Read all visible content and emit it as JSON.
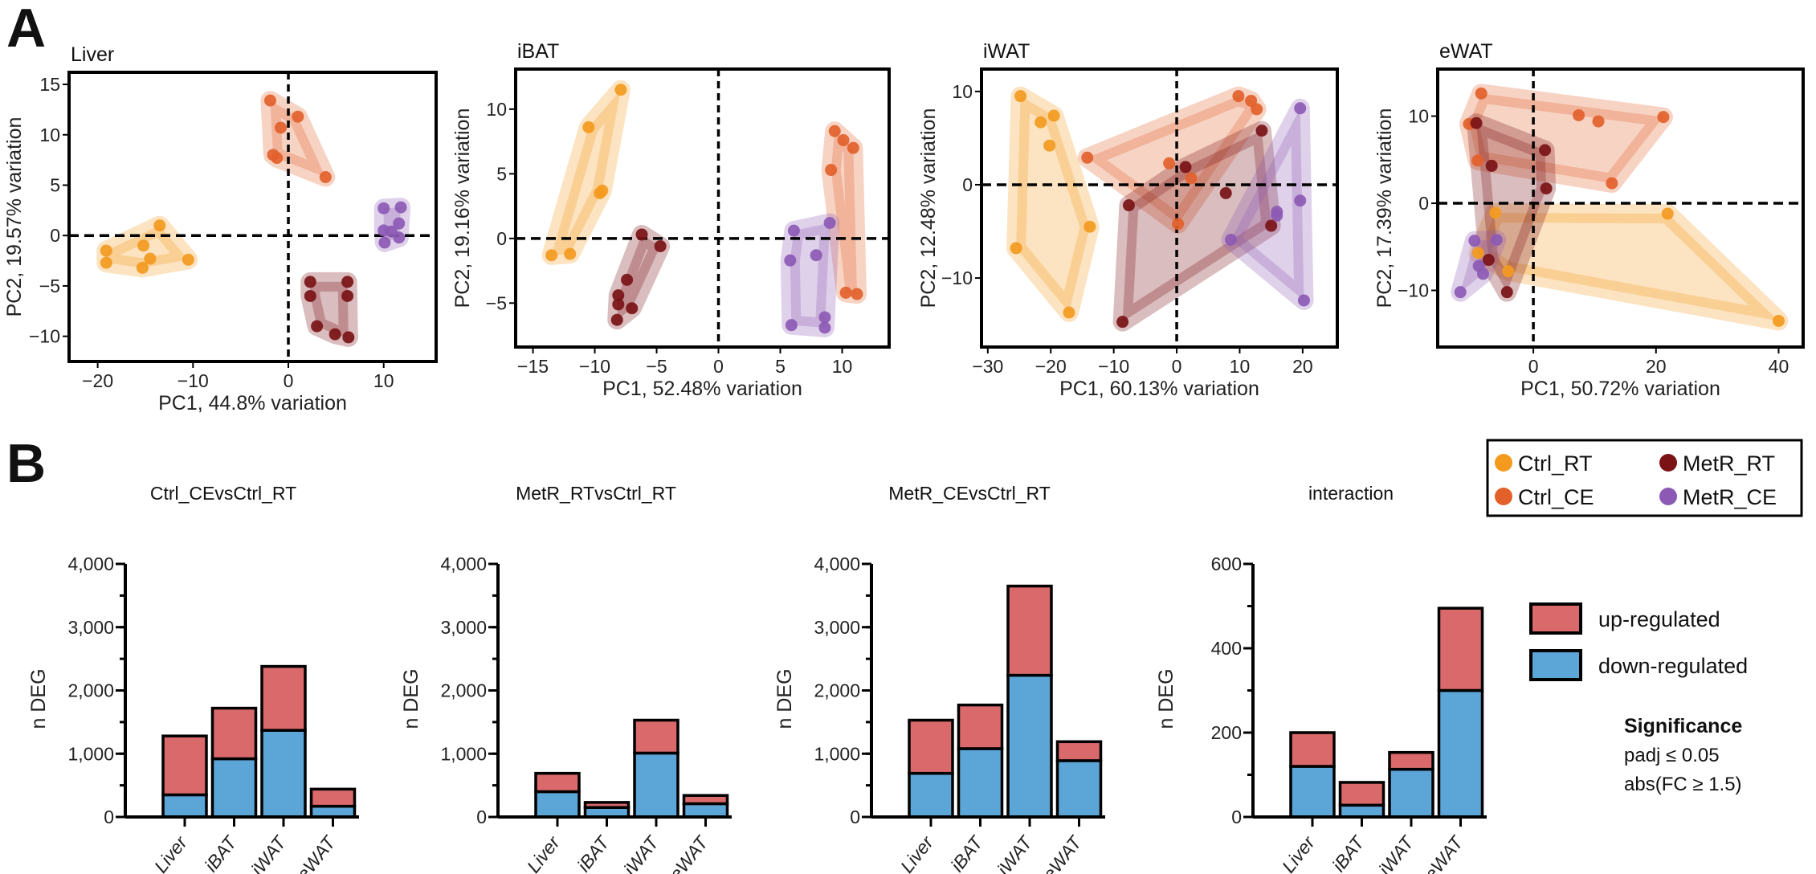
{
  "panel_labels": {
    "a": "A",
    "b": "B"
  },
  "group_colors": {
    "Ctrl_RT": "#F39A1F",
    "Ctrl_CE": "#E2612B",
    "MetR_RT": "#7A1216",
    "MetR_CE": "#8C5AB4"
  },
  "bar_colors": {
    "up-regulated": "#D9696A",
    "down-regulated": "#5CA5D7"
  },
  "pca_legend": [
    "Ctrl_RT",
    "Ctrl_CE",
    "MetR_RT",
    "MetR_CE"
  ],
  "bar_legend": [
    "up-regulated",
    "down-regulated"
  ],
  "significance": {
    "title": "Significance",
    "line1": "padj ≤ 0.05",
    "line2": "abs(FC ≥ 1.5)"
  },
  "chart_data": [
    {
      "type": "scatter",
      "title": "Liver",
      "xlabel": "PC1, 44.8% variation",
      "ylabel": "PC2, 19.57% variation",
      "xlim": [
        -23,
        15.5
      ],
      "ylim": [
        -12.5,
        16.2
      ],
      "xticks": [
        -20,
        -10,
        0,
        10
      ],
      "xtick_labels": [
        "−20",
        "−10",
        "0",
        "10"
      ],
      "yticks": [
        -10,
        -5,
        0,
        5,
        10,
        15
      ],
      "ytick_labels": [
        "−10",
        "−5",
        "0",
        "5",
        "10",
        "15"
      ],
      "reference_lines": {
        "x": 0,
        "y": 0,
        "style": "dashed"
      },
      "grid": false,
      "series": [
        {
          "name": "Ctrl_RT",
          "points": [
            [
              -19.1,
              -1.5
            ],
            [
              -19.1,
              -2.7
            ],
            [
              -15.2,
              -1.0
            ],
            [
              -14.5,
              -2.3
            ],
            [
              -15.3,
              -3.2
            ],
            [
              -13.5,
              1.0
            ],
            [
              -10.5,
              -2.4
            ]
          ]
        },
        {
          "name": "Ctrl_CE",
          "points": [
            [
              -1.9,
              13.4
            ],
            [
              1.0,
              11.8
            ],
            [
              -0.8,
              10.7
            ],
            [
              -1.6,
              8.0
            ],
            [
              -1.2,
              7.7
            ],
            [
              3.9,
              5.8
            ]
          ]
        },
        {
          "name": "MetR_RT",
          "points": [
            [
              2.3,
              -4.6
            ],
            [
              2.3,
              -6.0
            ],
            [
              6.2,
              -4.6
            ],
            [
              6.2,
              -6.0
            ],
            [
              3.0,
              -9.0
            ],
            [
              4.9,
              -9.8
            ],
            [
              6.3,
              -10.1
            ]
          ]
        },
        {
          "name": "MetR_CE",
          "points": [
            [
              10.0,
              2.7
            ],
            [
              11.8,
              2.8
            ],
            [
              11.6,
              1.2
            ],
            [
              10.0,
              0.5
            ],
            [
              11.6,
              -0.2
            ],
            [
              10.1,
              -0.7
            ],
            [
              10.8,
              0.4
            ]
          ]
        }
      ]
    },
    {
      "type": "scatter",
      "title": "iBAT",
      "xlabel": "PC1, 52.48% variation",
      "ylabel": "PC2, 19.16% variation",
      "xlim": [
        -16.4,
        13.8
      ],
      "ylim": [
        -8.4,
        13.1
      ],
      "xticks": [
        -15,
        -10,
        -5,
        0,
        5,
        10
      ],
      "xtick_labels": [
        "−15",
        "−10",
        "−5",
        "0",
        "5",
        "10"
      ],
      "yticks": [
        -5,
        0,
        5,
        10
      ],
      "ytick_labels": [
        "−5",
        "0",
        "5",
        "10"
      ],
      "reference_lines": {
        "x": 0,
        "y": 0,
        "style": "dashed"
      },
      "grid": false,
      "series": [
        {
          "name": "Ctrl_RT",
          "points": [
            [
              -13.5,
              -1.3
            ],
            [
              -12.0,
              -1.2
            ],
            [
              -9.6,
              3.5
            ],
            [
              -9.4,
              3.7
            ],
            [
              -10.5,
              8.6
            ],
            [
              -7.9,
              11.5
            ]
          ]
        },
        {
          "name": "Ctrl_CE",
          "points": [
            [
              9.1,
              5.3
            ],
            [
              9.4,
              8.3
            ],
            [
              10.1,
              7.6
            ],
            [
              10.9,
              7.0
            ],
            [
              10.3,
              -4.2
            ],
            [
              11.2,
              -4.3
            ]
          ]
        },
        {
          "name": "MetR_RT",
          "points": [
            [
              -6.2,
              0.3
            ],
            [
              -4.7,
              -0.6
            ],
            [
              -7.4,
              -3.2
            ],
            [
              -8.1,
              -4.4
            ],
            [
              -8.1,
              -5.1
            ],
            [
              -7.0,
              -5.4
            ],
            [
              -8.2,
              -6.3
            ]
          ]
        },
        {
          "name": "MetR_CE",
          "points": [
            [
              6.1,
              0.6
            ],
            [
              9.0,
              1.2
            ],
            [
              5.8,
              -1.7
            ],
            [
              7.9,
              -1.3
            ],
            [
              8.6,
              -6.1
            ],
            [
              8.6,
              -6.9
            ],
            [
              5.9,
              -6.7
            ]
          ]
        }
      ]
    },
    {
      "type": "scatter",
      "title": "iWAT",
      "xlabel": "PC1, 60.13% variation",
      "ylabel": "PC2, 12.48% variation",
      "xlim": [
        -31,
        25.5
      ],
      "ylim": [
        -17.4,
        12.4
      ],
      "xticks": [
        -30,
        -20,
        -10,
        0,
        10,
        20
      ],
      "xtick_labels": [
        "−30",
        "−20",
        "−10",
        "0",
        "10",
        "20"
      ],
      "yticks": [
        -10,
        0,
        10
      ],
      "ytick_labels": [
        "−10",
        "0",
        "10"
      ],
      "reference_lines": {
        "x": 0,
        "y": 0,
        "style": "dashed"
      },
      "grid": false,
      "series": [
        {
          "name": "Ctrl_RT",
          "points": [
            [
              -25.5,
              -6.8
            ],
            [
              -13.8,
              -4.5
            ],
            [
              -17.1,
              -13.7
            ],
            [
              -24.8,
              9.5
            ],
            [
              -21.6,
              6.7
            ],
            [
              -19.5,
              7.4
            ],
            [
              -20.2,
              4.2
            ]
          ]
        },
        {
          "name": "Ctrl_CE",
          "points": [
            [
              -14.2,
              2.9
            ],
            [
              -1.2,
              2.3
            ],
            [
              2.3,
              0.7
            ],
            [
              0.2,
              -4.2
            ],
            [
              9.8,
              9.5
            ],
            [
              11.8,
              9.0
            ],
            [
              12.7,
              8.1
            ]
          ]
        },
        {
          "name": "MetR_RT",
          "points": [
            [
              -7.6,
              -2.2
            ],
            [
              1.4,
              1.9
            ],
            [
              7.8,
              -0.9
            ],
            [
              15.0,
              -4.4
            ],
            [
              -8.6,
              -14.7
            ],
            [
              13.5,
              5.8
            ]
          ]
        },
        {
          "name": "MetR_CE",
          "points": [
            [
              8.6,
              -5.9
            ],
            [
              15.9,
              -2.9
            ],
            [
              15.9,
              -3.3
            ],
            [
              19.6,
              -1.7
            ],
            [
              20.2,
              -12.4
            ],
            [
              19.6,
              8.2
            ]
          ]
        }
      ]
    },
    {
      "type": "scatter",
      "title": "eWAT",
      "xlabel": "PC1, 50.72% variation",
      "ylabel": "PC2, 17.39% variation",
      "xlim": [
        -15.6,
        44
      ],
      "ylim": [
        -16.5,
        15.4
      ],
      "xticks": [
        0,
        20,
        40
      ],
      "xtick_labels": [
        "0",
        "20",
        "40"
      ],
      "yticks": [
        -10,
        0,
        10
      ],
      "ytick_labels": [
        "−10",
        "0",
        "10"
      ],
      "reference_lines": {
        "x": 0,
        "y": 0,
        "style": "dashed"
      },
      "grid": false,
      "series": [
        {
          "name": "Ctrl_RT",
          "points": [
            [
              -6.2,
              -1.1
            ],
            [
              21.9,
              -1.2
            ],
            [
              -9.0,
              -5.7
            ],
            [
              -4.1,
              -7.8
            ],
            [
              40.0,
              -13.5
            ]
          ]
        },
        {
          "name": "Ctrl_CE",
          "points": [
            [
              -8.5,
              12.6
            ],
            [
              -10.5,
              9.1
            ],
            [
              -9.1,
              4.9
            ],
            [
              7.4,
              10.1
            ],
            [
              10.6,
              9.4
            ],
            [
              21.2,
              9.9
            ],
            [
              12.8,
              2.3
            ]
          ]
        },
        {
          "name": "MetR_RT",
          "points": [
            [
              -9.3,
              9.2
            ],
            [
              -6.8,
              4.3
            ],
            [
              1.9,
              6.1
            ],
            [
              2.1,
              1.7
            ],
            [
              -7.3,
              -6.5
            ],
            [
              -4.3,
              -10.2
            ]
          ]
        },
        {
          "name": "MetR_CE",
          "points": [
            [
              -9.6,
              -4.3
            ],
            [
              -6.0,
              -4.2
            ],
            [
              -8.9,
              -7.2
            ],
            [
              -8.2,
              -8.1
            ],
            [
              -11.9,
              -10.2
            ]
          ]
        }
      ]
    },
    {
      "type": "bar",
      "stacked": true,
      "title": "Ctrl_CEvsCtrl_RT",
      "ylabel": "n DEG",
      "xlabel": "",
      "categories": [
        "Liver",
        "iBAT",
        "iWAT",
        "eWAT"
      ],
      "ylim": [
        0,
        4000
      ],
      "yticks": [
        0,
        1000,
        2000,
        3000,
        4000
      ],
      "ytick_labels": [
        "0",
        "1,000",
        "2,000",
        "3,000",
        "4,000"
      ],
      "minor_step": 500,
      "series": [
        {
          "name": "down-regulated",
          "values": [
            350,
            920,
            1370,
            170
          ]
        },
        {
          "name": "up-regulated",
          "values": [
            930,
            800,
            1010,
            270
          ]
        }
      ]
    },
    {
      "type": "bar",
      "stacked": true,
      "title": "MetR_RTvsCtrl_RT",
      "ylabel": "n DEG",
      "xlabel": "",
      "categories": [
        "Liver",
        "iBAT",
        "iWAT",
        "eWAT"
      ],
      "ylim": [
        0,
        4000
      ],
      "yticks": [
        0,
        1000,
        2000,
        3000,
        4000
      ],
      "ytick_labels": [
        "0",
        "1,000",
        "2,000",
        "3,000",
        "4,000"
      ],
      "minor_step": 500,
      "series": [
        {
          "name": "down-regulated",
          "values": [
            400,
            150,
            1010,
            210
          ]
        },
        {
          "name": "up-regulated",
          "values": [
            290,
            80,
            520,
            130
          ]
        }
      ]
    },
    {
      "type": "bar",
      "stacked": true,
      "title": "MetR_CEvsCtrl_RT",
      "ylabel": "n DEG",
      "xlabel": "",
      "categories": [
        "Liver",
        "iBAT",
        "iWAT",
        "eWAT"
      ],
      "ylim": [
        0,
        4000
      ],
      "yticks": [
        0,
        1000,
        2000,
        3000,
        4000
      ],
      "ytick_labels": [
        "0",
        "1,000",
        "2,000",
        "3,000",
        "4,000"
      ],
      "minor_step": 500,
      "series": [
        {
          "name": "down-regulated",
          "values": [
            690,
            1080,
            2240,
            890
          ]
        },
        {
          "name": "up-regulated",
          "values": [
            840,
            690,
            1410,
            300
          ]
        }
      ]
    },
    {
      "type": "bar",
      "stacked": true,
      "title": "interaction",
      "ylabel": "n DEG",
      "xlabel": "",
      "categories": [
        "Liver",
        "iBAT",
        "iWAT",
        "eWAT"
      ],
      "ylim": [
        0,
        600
      ],
      "yticks": [
        0,
        200,
        400,
        600
      ],
      "ytick_labels": [
        "0",
        "200",
        "400",
        "600"
      ],
      "minor_step": 100,
      "series": [
        {
          "name": "down-regulated",
          "values": [
            120,
            28,
            113,
            300
          ]
        },
        {
          "name": "up-regulated",
          "values": [
            80,
            54,
            40,
            195
          ]
        }
      ]
    }
  ]
}
